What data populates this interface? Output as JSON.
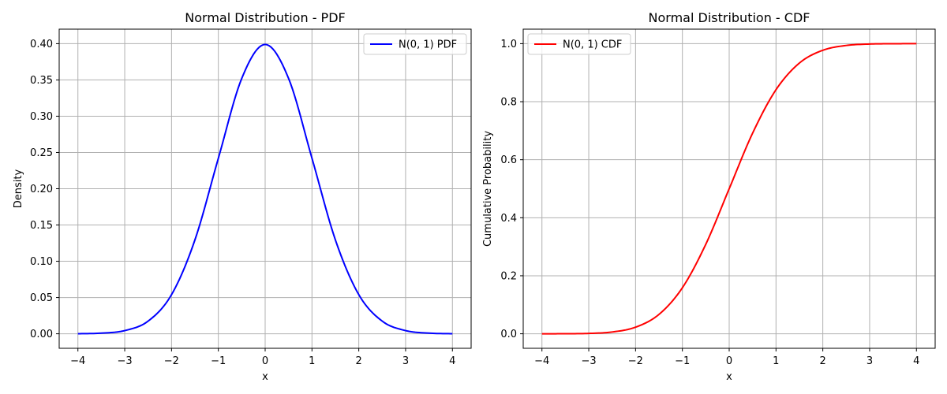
{
  "chart_data": [
    {
      "type": "line",
      "title": "Normal Distribution - PDF",
      "xlabel": "x",
      "ylabel": "Density",
      "xlim": [
        -4.4,
        4.4
      ],
      "ylim": [
        -0.02,
        0.42
      ],
      "xticks": [
        -4,
        -3,
        -2,
        -1,
        0,
        1,
        2,
        3,
        4
      ],
      "xtick_labels": [
        "−4",
        "−3",
        "−2",
        "−1",
        "0",
        "1",
        "2",
        "3",
        "4"
      ],
      "yticks": [
        0.0,
        0.05,
        0.1,
        0.15,
        0.2,
        0.25,
        0.3,
        0.35,
        0.4
      ],
      "ytick_labels": [
        "0.00",
        "0.05",
        "0.10",
        "0.15",
        "0.20",
        "0.25",
        "0.30",
        "0.35",
        "0.40"
      ],
      "grid": true,
      "legend_position": "top-right",
      "series": [
        {
          "name": "N(0, 1) PDF",
          "color": "#0000ff",
          "x": [
            -4.0,
            -3.5,
            -3.0,
            -2.5,
            -2.0,
            -1.5,
            -1.0,
            -0.5,
            0.0,
            0.5,
            1.0,
            1.5,
            2.0,
            2.5,
            3.0,
            3.5,
            4.0
          ],
          "y": [
            0.0001,
            0.0009,
            0.0044,
            0.0175,
            0.054,
            0.1295,
            0.242,
            0.3521,
            0.3989,
            0.3521,
            0.242,
            0.1295,
            0.054,
            0.0175,
            0.0044,
            0.0009,
            0.0001
          ]
        }
      ]
    },
    {
      "type": "line",
      "title": "Normal Distribution - CDF",
      "xlabel": "x",
      "ylabel": "Cumulative Probability",
      "xlim": [
        -4.4,
        4.4
      ],
      "ylim": [
        -0.05,
        1.05
      ],
      "xticks": [
        -4,
        -3,
        -2,
        -1,
        0,
        1,
        2,
        3,
        4
      ],
      "xtick_labels": [
        "−4",
        "−3",
        "−2",
        "−1",
        "0",
        "1",
        "2",
        "3",
        "4"
      ],
      "yticks": [
        0.0,
        0.2,
        0.4,
        0.6,
        0.8,
        1.0
      ],
      "ytick_labels": [
        "0.0",
        "0.2",
        "0.4",
        "0.6",
        "0.8",
        "1.0"
      ],
      "grid": true,
      "legend_position": "top-left",
      "series": [
        {
          "name": "N(0, 1) CDF",
          "color": "#ff0000",
          "x": [
            -4.0,
            -3.5,
            -3.0,
            -2.5,
            -2.0,
            -1.5,
            -1.0,
            -0.5,
            0.0,
            0.5,
            1.0,
            1.5,
            2.0,
            2.5,
            3.0,
            3.5,
            4.0
          ],
          "y": [
            3e-05,
            0.0002,
            0.0013,
            0.0062,
            0.0228,
            0.0668,
            0.1587,
            0.3085,
            0.5,
            0.6915,
            0.8413,
            0.9332,
            0.9772,
            0.9938,
            0.9987,
            0.9998,
            0.99997
          ]
        }
      ]
    }
  ]
}
